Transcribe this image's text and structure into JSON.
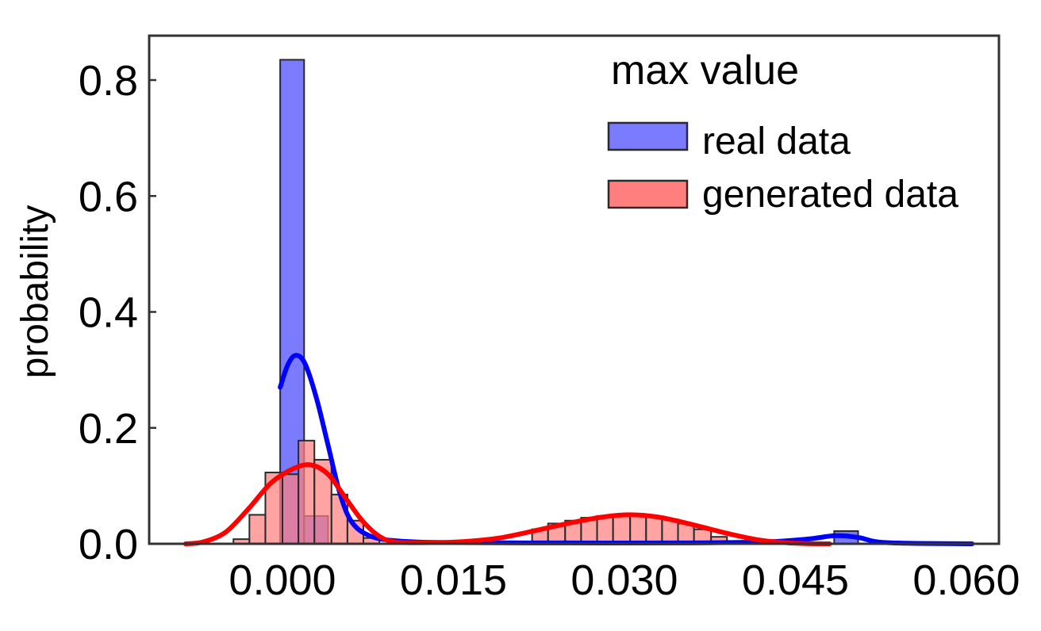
{
  "chart_data": {
    "type": "histogram",
    "title": "max value",
    "xlabel": "",
    "ylabel": "probability",
    "xlim": [
      -0.0085,
      0.062
    ],
    "ylim": [
      0,
      0.875
    ],
    "x_ticks": [
      "0.000",
      "0.015",
      "0.030",
      "0.045",
      "0.060"
    ],
    "x_tick_values": [
      0.0,
      0.015,
      0.03,
      0.045,
      0.06
    ],
    "y_ticks": [
      "0.0",
      "0.2",
      "0.4",
      "0.6",
      "0.8"
    ],
    "y_tick_values": [
      0.0,
      0.2,
      0.4,
      0.6,
      0.8
    ],
    "grid": false,
    "legend_position": "top-right",
    "series": [
      {
        "name": "real data",
        "color": "#7b7bff",
        "edge_color": "#2a2a2a",
        "curve_color": "#0000ff",
        "bins": [
          {
            "x0": -0.0002,
            "x1": 0.0019,
            "value": 0.835
          },
          {
            "x0": 0.0019,
            "x1": 0.004,
            "value": 0.048
          },
          {
            "x0": 0.0484,
            "x1": 0.0505,
            "value": 0.022
          }
        ],
        "kde": [
          [
            -0.0002,
            0.27
          ],
          [
            0.0005,
            0.31
          ],
          [
            0.0012,
            0.325
          ],
          [
            0.002,
            0.31
          ],
          [
            0.003,
            0.25
          ],
          [
            0.004,
            0.17
          ],
          [
            0.005,
            0.09
          ],
          [
            0.006,
            0.04
          ],
          [
            0.0075,
            0.015
          ],
          [
            0.01,
            0.005
          ],
          [
            0.015,
            0.002
          ],
          [
            0.025,
            0.0015
          ],
          [
            0.035,
            0.0015
          ],
          [
            0.042,
            0.003
          ],
          [
            0.046,
            0.008
          ],
          [
            0.0485,
            0.014
          ],
          [
            0.0505,
            0.011
          ],
          [
            0.053,
            0.002
          ],
          [
            0.0605,
            0.0
          ]
        ]
      },
      {
        "name": "generated data",
        "color": "#ff7f7f",
        "edge_color": "#2a2a2a",
        "curve_color": "#ff0000",
        "bins": [
          {
            "x0": -0.0043,
            "x1": -0.0029,
            "value": 0.008
          },
          {
            "x0": -0.0029,
            "x1": -0.0015,
            "value": 0.05
          },
          {
            "x0": -0.0015,
            "x1": 0.0,
            "value": 0.123
          },
          {
            "x0": 0.0,
            "x1": 0.0014,
            "value": 0.12
          },
          {
            "x0": 0.0014,
            "x1": 0.0028,
            "value": 0.178
          },
          {
            "x0": 0.0028,
            "x1": 0.0043,
            "value": 0.145
          },
          {
            "x0": 0.0043,
            "x1": 0.0057,
            "value": 0.085
          },
          {
            "x0": 0.0057,
            "x1": 0.0071,
            "value": 0.04
          },
          {
            "x0": 0.0071,
            "x1": 0.0085,
            "value": 0.01
          },
          {
            "x0": 0.0219,
            "x1": 0.0233,
            "value": 0.025
          },
          {
            "x0": 0.0233,
            "x1": 0.0248,
            "value": 0.035
          },
          {
            "x0": 0.0248,
            "x1": 0.0262,
            "value": 0.04
          },
          {
            "x0": 0.0262,
            "x1": 0.0276,
            "value": 0.045
          },
          {
            "x0": 0.0276,
            "x1": 0.029,
            "value": 0.048
          },
          {
            "x0": 0.029,
            "x1": 0.0305,
            "value": 0.05
          },
          {
            "x0": 0.0305,
            "x1": 0.0319,
            "value": 0.05
          },
          {
            "x0": 0.0319,
            "x1": 0.0333,
            "value": 0.047
          },
          {
            "x0": 0.0333,
            "x1": 0.0347,
            "value": 0.042
          },
          {
            "x0": 0.0347,
            "x1": 0.0361,
            "value": 0.035
          },
          {
            "x0": 0.0361,
            "x1": 0.0376,
            "value": 0.025
          },
          {
            "x0": 0.0376,
            "x1": 0.039,
            "value": 0.012
          }
        ],
        "kde": [
          [
            -0.0085,
            0.0
          ],
          [
            -0.007,
            0.003
          ],
          [
            -0.005,
            0.02
          ],
          [
            -0.003,
            0.06
          ],
          [
            -0.001,
            0.105
          ],
          [
            0.001,
            0.13
          ],
          [
            0.0025,
            0.136
          ],
          [
            0.004,
            0.12
          ],
          [
            0.0055,
            0.08
          ],
          [
            0.007,
            0.04
          ],
          [
            0.0085,
            0.013
          ],
          [
            0.01,
            0.003
          ],
          [
            0.013,
            0.002
          ],
          [
            0.016,
            0.004
          ],
          [
            0.019,
            0.01
          ],
          [
            0.022,
            0.022
          ],
          [
            0.025,
            0.035
          ],
          [
            0.028,
            0.046
          ],
          [
            0.0305,
            0.05
          ],
          [
            0.033,
            0.046
          ],
          [
            0.036,
            0.033
          ],
          [
            0.039,
            0.018
          ],
          [
            0.042,
            0.006
          ],
          [
            0.045,
            0.001
          ],
          [
            0.048,
            0.0
          ]
        ]
      }
    ]
  }
}
